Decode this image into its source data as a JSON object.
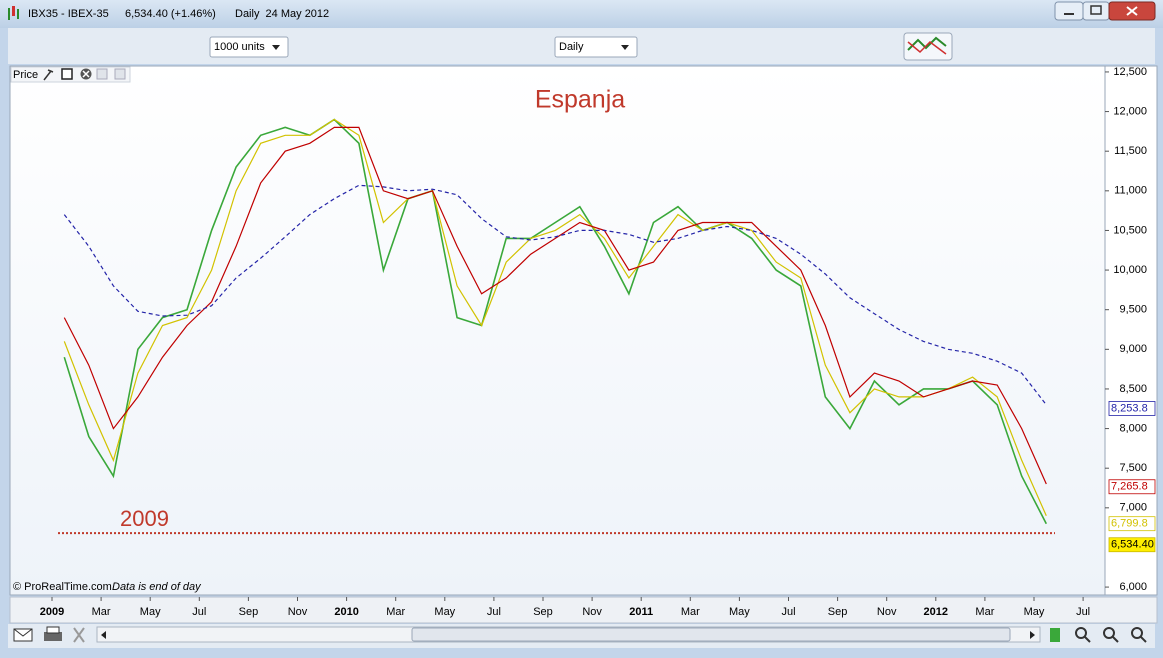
{
  "window": {
    "title": "IBX35 - IBEX-35",
    "quote": "6,534.40 (+1.46%)",
    "period": "Daily  24 May 2012"
  },
  "toolbar": {
    "units": "1000 units",
    "timeframe": "Daily"
  },
  "footer": {
    "source": "© ProRealTime.com",
    "note": "Data is end of day"
  },
  "chart_data": {
    "type": "line",
    "title": "Espanja",
    "x": [
      "2009-01",
      "2009-02",
      "2009-03",
      "2009-04",
      "2009-05",
      "2009-06",
      "2009-07",
      "2009-08",
      "2009-09",
      "2009-10",
      "2009-11",
      "2009-12",
      "2010-01",
      "2010-02",
      "2010-03",
      "2010-04",
      "2010-05",
      "2010-06",
      "2010-07",
      "2010-08",
      "2010-09",
      "2010-10",
      "2010-11",
      "2010-12",
      "2011-01",
      "2011-02",
      "2011-03",
      "2011-04",
      "2011-05",
      "2011-06",
      "2011-07",
      "2011-08",
      "2011-09",
      "2011-10",
      "2011-11",
      "2011-12",
      "2012-01",
      "2012-02",
      "2012-03",
      "2012-04",
      "2012-05"
    ],
    "series": [
      {
        "name": "Price",
        "color": "#3aa83a",
        "values": [
          8900,
          7900,
          7400,
          9000,
          9400,
          9500,
          10500,
          11300,
          11700,
          11800,
          11700,
          11900,
          11600,
          10000,
          10900,
          11000,
          9400,
          9300,
          10400,
          10400,
          10600,
          10800,
          10300,
          9700,
          10600,
          10800,
          10500,
          10600,
          10400,
          10000,
          9800,
          8400,
          8000,
          8600,
          8300,
          8500,
          8500,
          8600,
          8300,
          7400,
          6800
        ],
        "end_label": {
          "value": 6534.4,
          "label": "6,534.40"
        }
      },
      {
        "color": "#d2c200",
        "values": [
          9100,
          8300,
          7600,
          8700,
          9300,
          9400,
          10000,
          11000,
          11600,
          11700,
          11700,
          11900,
          11700,
          10600,
          10900,
          11000,
          9800,
          9300,
          10100,
          10400,
          10500,
          10700,
          10400,
          9900,
          10300,
          10700,
          10500,
          10600,
          10500,
          10100,
          9900,
          8800,
          8200,
          8500,
          8400,
          8400,
          8500,
          8650,
          8400,
          7600,
          6900
        ],
        "end_label": {
          "value": 6799.8,
          "label": "6,799.8"
        }
      },
      {
        "color": "#c00000",
        "values": [
          9400,
          8800,
          8000,
          8400,
          8900,
          9300,
          9600,
          10300,
          11100,
          11500,
          11600,
          11800,
          11800,
          11000,
          10900,
          11000,
          10300,
          9700,
          9900,
          10200,
          10400,
          10600,
          10500,
          10000,
          10100,
          10500,
          10600,
          10600,
          10600,
          10300,
          10000,
          9300,
          8400,
          8700,
          8600,
          8400,
          8500,
          8600,
          8550,
          8000,
          7300
        ],
        "end_label": {
          "value": 7265.8,
          "label": "7,265.8"
        }
      },
      {
        "color": "#2424a8",
        "dashed": true,
        "values": [
          10700,
          10300,
          9800,
          9480,
          9420,
          9430,
          9550,
          9900,
          10150,
          10420,
          10700,
          10900,
          11070,
          11050,
          11000,
          11020,
          10950,
          10650,
          10420,
          10380,
          10420,
          10500,
          10500,
          10450,
          10350,
          10400,
          10500,
          10550,
          10500,
          10400,
          10200,
          9950,
          9650,
          9450,
          9250,
          9100,
          9000,
          8950,
          8850,
          8700,
          8300
        ],
        "end_label": {
          "value": 8253.8,
          "label": "8,253.8"
        }
      }
    ],
    "reference_line": {
      "value": 6680,
      "label": "2009",
      "color": "#c0392b"
    },
    "ylim": [
      5900,
      12575
    ],
    "yticks": [
      {
        "value": 6000,
        "label": "6,000"
      },
      {
        "value": 7000,
        "label": "7,000"
      },
      {
        "value": 7500,
        "label": "7,500"
      },
      {
        "value": 8000,
        "label": "8,000"
      },
      {
        "value": 8500,
        "label": "8,500"
      },
      {
        "value": 9000,
        "label": "9,000"
      },
      {
        "value": 9500,
        "label": "9,500"
      },
      {
        "value": 10000,
        "label": "10,000"
      },
      {
        "value": 10500,
        "label": "10,500"
      },
      {
        "value": 11000,
        "label": "11,000"
      },
      {
        "value": 11500,
        "label": "11,500"
      },
      {
        "value": 12000,
        "label": "12,000"
      },
      {
        "value": 12500,
        "label": "12,500"
      }
    ],
    "xticks": [
      {
        "value": "2009-01",
        "label": "2009"
      },
      {
        "value": "2009-03",
        "label": "Mar"
      },
      {
        "value": "2009-05",
        "label": "May"
      },
      {
        "value": "2009-07",
        "label": "Jul"
      },
      {
        "value": "2009-09",
        "label": "Sep"
      },
      {
        "value": "2009-11",
        "label": "Nov"
      },
      {
        "value": "2010-01",
        "label": "2010"
      },
      {
        "value": "2010-03",
        "label": "Mar"
      },
      {
        "value": "2010-05",
        "label": "May"
      },
      {
        "value": "2010-07",
        "label": "Jul"
      },
      {
        "value": "2010-09",
        "label": "Sep"
      },
      {
        "value": "2010-11",
        "label": "Nov"
      },
      {
        "value": "2011-01",
        "label": "2011"
      },
      {
        "value": "2011-03",
        "label": "Mar"
      },
      {
        "value": "2011-05",
        "label": "May"
      },
      {
        "value": "2011-07",
        "label": "Jul"
      },
      {
        "value": "2011-09",
        "label": "Sep"
      },
      {
        "value": "2011-11",
        "label": "Nov"
      },
      {
        "value": "2012-01",
        "label": "2012"
      },
      {
        "value": "2012-03",
        "label": "Mar"
      },
      {
        "value": "2012-05",
        "label": "May"
      },
      {
        "value": "2012-07",
        "label": "Jul"
      }
    ]
  }
}
